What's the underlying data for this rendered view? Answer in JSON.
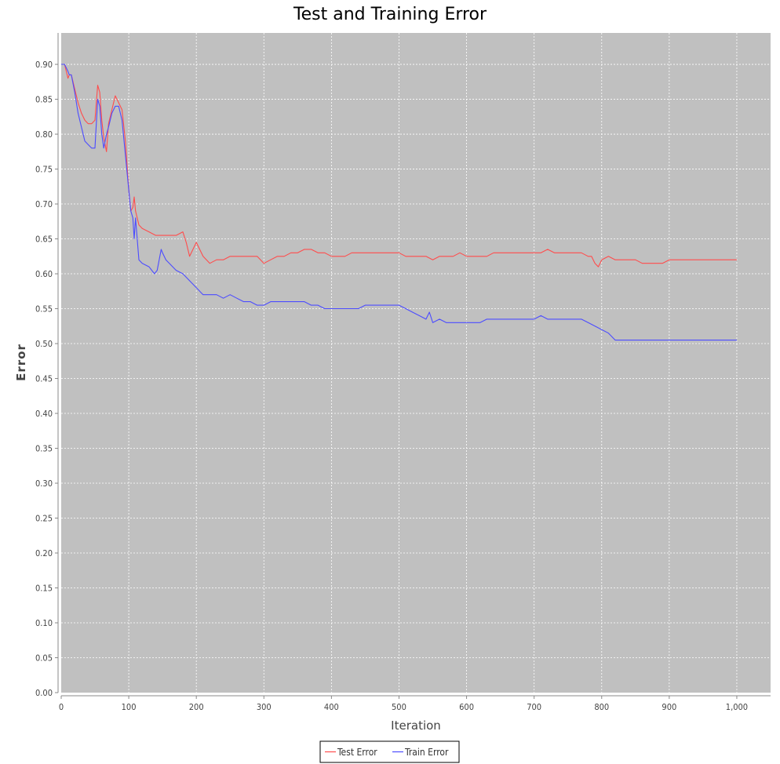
{
  "chart_data": {
    "type": "line",
    "title": "Test and Training Error",
    "xlabel": "Iteration",
    "ylabel": "Error",
    "xlim": [
      0,
      1050
    ],
    "ylim": [
      0,
      0.945
    ],
    "x_ticks": [
      0,
      100,
      200,
      300,
      400,
      500,
      600,
      700,
      800,
      900,
      1000
    ],
    "x_tick_labels": [
      "0",
      "100",
      "200",
      "300",
      "400",
      "500",
      "600",
      "700",
      "800",
      "900",
      "1,000"
    ],
    "y_ticks": [
      0,
      0.05,
      0.1,
      0.15,
      0.2,
      0.25,
      0.3,
      0.35,
      0.4,
      0.45,
      0.5,
      0.55,
      0.6,
      0.65,
      0.7,
      0.75,
      0.8,
      0.85,
      0.9
    ],
    "y_tick_labels": [
      "0.00",
      "0.05",
      "0.10",
      "0.15",
      "0.20",
      "0.25",
      "0.30",
      "0.35",
      "0.40",
      "0.45",
      "0.50",
      "0.55",
      "0.60",
      "0.65",
      "0.70",
      "0.75",
      "0.80",
      "0.85",
      "0.90"
    ],
    "grid": true,
    "legend_position": "bottom-center",
    "colors": {
      "plot_background": "#c0c0c0",
      "grid": "#ffffff",
      "test": "#ff4c4c",
      "train": "#4c4cff"
    },
    "series": [
      {
        "name": "Test Error",
        "color": "#ff4c4c",
        "x": [
          0,
          5,
          10,
          12,
          15,
          20,
          25,
          30,
          35,
          40,
          45,
          50,
          54,
          57,
          60,
          63,
          67,
          70,
          75,
          80,
          85,
          90,
          95,
          100,
          103,
          106,
          108,
          110,
          115,
          120,
          130,
          140,
          150,
          160,
          170,
          180,
          185,
          190,
          200,
          210,
          220,
          230,
          240,
          250,
          260,
          270,
          280,
          290,
          300,
          310,
          320,
          330,
          340,
          350,
          360,
          370,
          380,
          390,
          400,
          410,
          420,
          430,
          440,
          450,
          460,
          470,
          480,
          490,
          500,
          510,
          520,
          530,
          540,
          550,
          560,
          570,
          580,
          590,
          600,
          610,
          620,
          630,
          640,
          650,
          660,
          670,
          680,
          690,
          700,
          710,
          720,
          730,
          740,
          750,
          760,
          770,
          780,
          785,
          790,
          795,
          800,
          810,
          820,
          830,
          840,
          850,
          860,
          870,
          880,
          890,
          900,
          910,
          920,
          930,
          940,
          950,
          960,
          970,
          980,
          990,
          1000
        ],
        "y": [
          0.9,
          0.9,
          0.88,
          0.885,
          0.885,
          0.865,
          0.845,
          0.83,
          0.82,
          0.815,
          0.815,
          0.82,
          0.87,
          0.86,
          0.82,
          0.795,
          0.775,
          0.815,
          0.835,
          0.855,
          0.845,
          0.835,
          0.79,
          0.72,
          0.69,
          0.695,
          0.71,
          0.69,
          0.67,
          0.665,
          0.66,
          0.655,
          0.655,
          0.655,
          0.655,
          0.66,
          0.645,
          0.625,
          0.645,
          0.625,
          0.615,
          0.62,
          0.62,
          0.625,
          0.625,
          0.625,
          0.625,
          0.625,
          0.615,
          0.62,
          0.625,
          0.625,
          0.63,
          0.63,
          0.635,
          0.635,
          0.63,
          0.63,
          0.625,
          0.625,
          0.625,
          0.63,
          0.63,
          0.63,
          0.63,
          0.63,
          0.63,
          0.63,
          0.63,
          0.625,
          0.625,
          0.625,
          0.625,
          0.62,
          0.625,
          0.625,
          0.625,
          0.63,
          0.625,
          0.625,
          0.625,
          0.625,
          0.63,
          0.63,
          0.63,
          0.63,
          0.63,
          0.63,
          0.63,
          0.63,
          0.635,
          0.63,
          0.63,
          0.63,
          0.63,
          0.63,
          0.625,
          0.625,
          0.615,
          0.61,
          0.62,
          0.625,
          0.62,
          0.62,
          0.62,
          0.62,
          0.615,
          0.615,
          0.615,
          0.615,
          0.62,
          0.62,
          0.62,
          0.62,
          0.62,
          0.62,
          0.62,
          0.62,
          0.62,
          0.62,
          0.62
        ]
      },
      {
        "name": "Train Error",
        "color": "#4c4cff",
        "x": [
          0,
          5,
          10,
          12,
          15,
          20,
          25,
          30,
          35,
          40,
          45,
          50,
          54,
          57,
          60,
          63,
          67,
          70,
          75,
          80,
          85,
          90,
          95,
          100,
          103,
          106,
          108,
          110,
          115,
          120,
          130,
          138,
          142,
          148,
          150,
          155,
          160,
          170,
          180,
          190,
          200,
          210,
          220,
          230,
          240,
          250,
          260,
          270,
          280,
          290,
          300,
          310,
          320,
          330,
          340,
          350,
          360,
          370,
          380,
          390,
          400,
          410,
          420,
          430,
          440,
          450,
          460,
          470,
          480,
          490,
          500,
          510,
          520,
          530,
          540,
          545,
          550,
          560,
          570,
          580,
          590,
          600,
          610,
          620,
          630,
          640,
          650,
          660,
          670,
          680,
          690,
          700,
          710,
          720,
          730,
          740,
          750,
          760,
          770,
          780,
          790,
          800,
          810,
          820,
          830,
          840,
          850,
          860,
          870,
          880,
          890,
          900,
          910,
          920,
          930,
          940,
          950,
          960,
          970,
          980,
          990,
          1000
        ],
        "y": [
          0.9,
          0.9,
          0.89,
          0.885,
          0.885,
          0.86,
          0.83,
          0.81,
          0.79,
          0.785,
          0.78,
          0.78,
          0.85,
          0.84,
          0.8,
          0.78,
          0.8,
          0.81,
          0.83,
          0.84,
          0.84,
          0.82,
          0.77,
          0.72,
          0.69,
          0.68,
          0.65,
          0.68,
          0.62,
          0.615,
          0.61,
          0.6,
          0.605,
          0.635,
          0.63,
          0.62,
          0.615,
          0.605,
          0.6,
          0.59,
          0.58,
          0.57,
          0.57,
          0.57,
          0.565,
          0.57,
          0.565,
          0.56,
          0.56,
          0.555,
          0.555,
          0.56,
          0.56,
          0.56,
          0.56,
          0.56,
          0.56,
          0.555,
          0.555,
          0.55,
          0.55,
          0.55,
          0.55,
          0.55,
          0.55,
          0.555,
          0.555,
          0.555,
          0.555,
          0.555,
          0.555,
          0.55,
          0.545,
          0.54,
          0.535,
          0.545,
          0.53,
          0.535,
          0.53,
          0.53,
          0.53,
          0.53,
          0.53,
          0.53,
          0.535,
          0.535,
          0.535,
          0.535,
          0.535,
          0.535,
          0.535,
          0.535,
          0.54,
          0.535,
          0.535,
          0.535,
          0.535,
          0.535,
          0.535,
          0.53,
          0.525,
          0.52,
          0.515,
          0.505,
          0.505,
          0.505,
          0.505,
          0.505,
          0.505,
          0.505,
          0.505,
          0.505,
          0.505,
          0.505,
          0.505,
          0.505,
          0.505,
          0.505,
          0.505,
          0.505,
          0.505,
          0.505
        ]
      }
    ]
  }
}
